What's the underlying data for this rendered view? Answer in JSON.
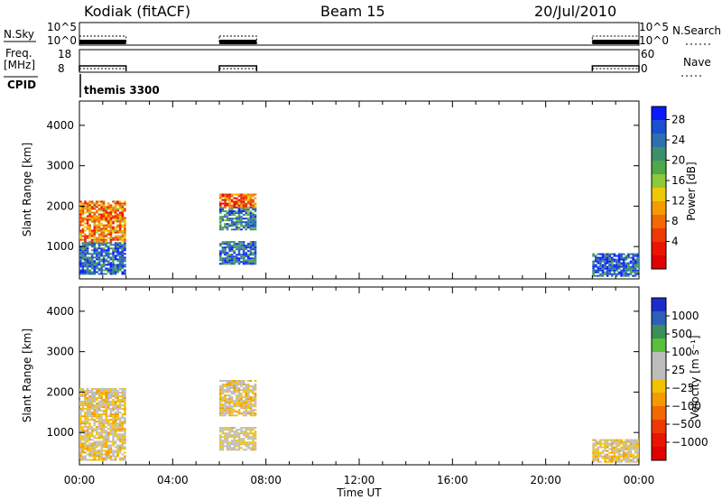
{
  "header": {
    "station": "Kodiak (fitACF)",
    "beam": "Beam 15",
    "date": "20/Jul/2010"
  },
  "aux_panels": {
    "nsky_label": "N.Sky",
    "nsky_ticks": [
      "10^5",
      "10^0"
    ],
    "nsearch_label": "N.Search",
    "nsearch_ticks": [
      "10^5",
      "10^0"
    ],
    "freq_label_line1": "Freq.",
    "freq_label_line2": "[MHz]",
    "freq_ticks": [
      "18",
      "8"
    ],
    "nave_label": "Nave",
    "nave_ticks": [
      "60",
      "0"
    ],
    "cpid_label": "CPID",
    "cpid_name": "themis 3300"
  },
  "power_panel": {
    "ylabel": "Slant Range [km]",
    "yticks": [
      "4000",
      "3000",
      "2000",
      "1000"
    ],
    "colorbar_label": "Power [dB]",
    "colorbar_ticks": [
      "28",
      "24",
      "20",
      "16",
      "12",
      "8",
      "4"
    ],
    "colorbar_colors": [
      "#0a1aff",
      "#1b4fd0",
      "#2e6fb0",
      "#3f8f6a",
      "#4fa84a",
      "#8cc83a",
      "#f0c800",
      "#f59a00",
      "#f26a00",
      "#ee3a00",
      "#ea1400",
      "#e00000"
    ]
  },
  "velocity_panel": {
    "ylabel": "Slant Range [km]",
    "yticks": [
      "4000",
      "3000",
      "2000",
      "1000"
    ],
    "colorbar_label": "Velocity [m s⁻¹]",
    "colorbar_ticks": [
      "1000",
      "500",
      "100",
      "25",
      "−25",
      "−100",
      "−500",
      "−1000"
    ],
    "colorbar_colors": [
      "#1a2ccc",
      "#2e5fb8",
      "#3a8f5a",
      "#58c03a",
      "#bdbdbd",
      "#bdbdbd",
      "#f2c200",
      "#f29a00",
      "#f06a00",
      "#ee3a00",
      "#ea1400",
      "#e00000"
    ]
  },
  "x_axis": {
    "ticks": [
      "00:00",
      "04:00",
      "08:00",
      "12:00",
      "16:00",
      "20:00",
      "00:00"
    ],
    "label": "Time UT"
  },
  "chart_data": {
    "type": "heatmap",
    "x_unit": "hours UT",
    "xlim": [
      0,
      24
    ],
    "ylim": [
      200,
      4600
    ],
    "data_intervals_ut": [
      [
        0.0,
        2.0
      ],
      [
        6.0,
        7.6
      ],
      [
        22.0,
        24.0
      ]
    ],
    "power_panel": {
      "quantity": "Power [dB]",
      "colorbar_range": [
        0,
        32
      ],
      "features": [
        {
          "ut": [
            0.0,
            2.0
          ],
          "slant_range": [
            300,
            1100
          ],
          "typical_power": 26
        },
        {
          "ut": [
            0.0,
            2.0
          ],
          "slant_range": [
            1100,
            2100
          ],
          "typical_power": 10
        },
        {
          "ut": [
            6.0,
            7.6
          ],
          "slant_range": [
            1400,
            1950
          ],
          "typical_power": 24
        },
        {
          "ut": [
            6.0,
            7.6
          ],
          "slant_range": [
            550,
            1100
          ],
          "typical_power": 26
        },
        {
          "ut": [
            6.0,
            7.6
          ],
          "slant_range": [
            1950,
            2300
          ],
          "typical_power": 8
        },
        {
          "ut": [
            22.0,
            24.0
          ],
          "slant_range": [
            250,
            800
          ],
          "typical_power": 27
        }
      ]
    },
    "velocity_panel": {
      "quantity": "Velocity [m s-1]",
      "colorbar_range": [
        -1000,
        1000
      ],
      "features": [
        {
          "ut": [
            0.0,
            2.0
          ],
          "slant_range": [
            300,
            2100
          ],
          "typical_velocity": 0
        },
        {
          "ut": [
            6.0,
            7.6
          ],
          "slant_range": [
            550,
            1100
          ],
          "typical_velocity": 80
        },
        {
          "ut": [
            6.0,
            7.6
          ],
          "slant_range": [
            1400,
            2300
          ],
          "typical_velocity": 0
        },
        {
          "ut": [
            22.0,
            24.0
          ],
          "slant_range": [
            250,
            800
          ],
          "typical_velocity": 0
        }
      ]
    }
  }
}
